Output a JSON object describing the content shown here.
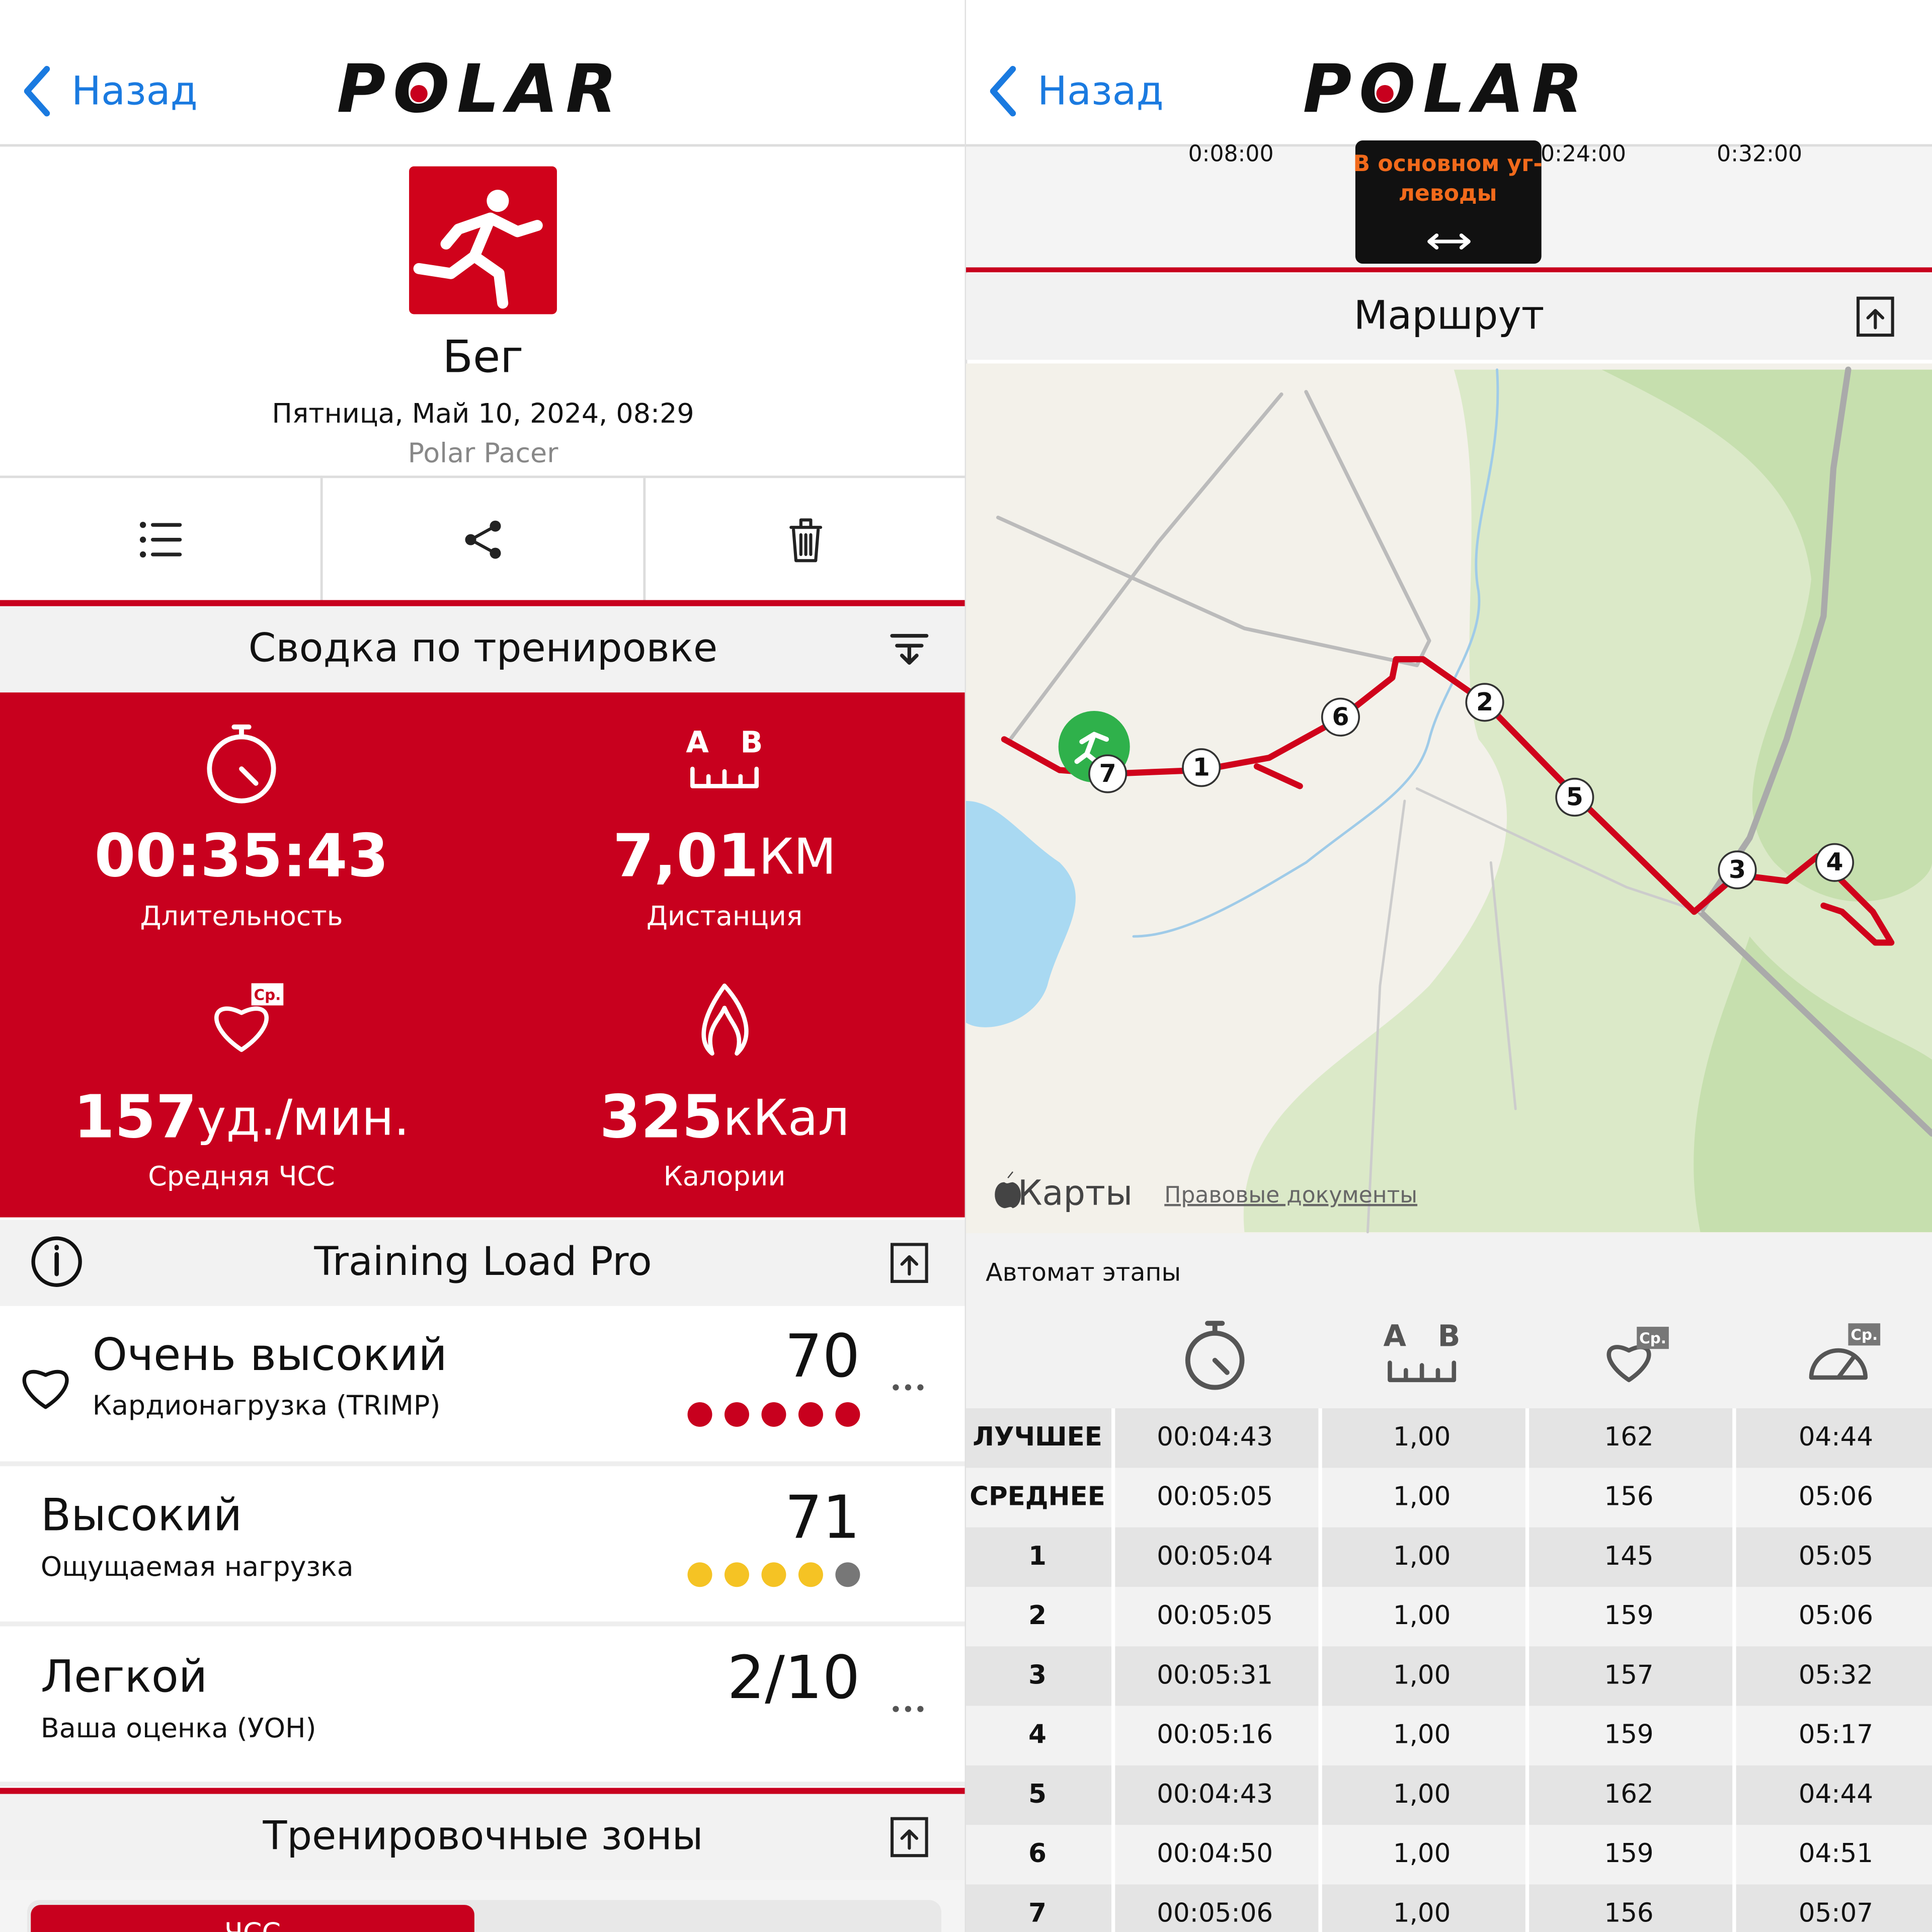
{
  "left": {
    "nav": {
      "back": "Назад",
      "brand": "POLAR"
    },
    "activity": {
      "sport": "Бег",
      "date": "Пятница, Май 10, 2024, 08:29",
      "device": "Polar Pacer"
    },
    "summary": {
      "title": "Сводка по тренировке",
      "icon_letters": [
        "A",
        "B"
      ],
      "badge": "Ср.",
      "stats": [
        {
          "value": "00:35:43",
          "label": "Длительность"
        },
        {
          "value": "7,01",
          "unit": "КМ",
          "label": "Дистанция"
        },
        {
          "value": "157",
          "unit": "уд./мин.",
          "label": "Средняя ЧСС"
        },
        {
          "value": "325",
          "unit": "кКал",
          "label": "Калории"
        }
      ]
    },
    "training_load": {
      "title": "Training Load Pro",
      "items": [
        {
          "level": "Очень высокий",
          "desc": "Кардионагрузка (TRIMP)",
          "score": "70"
        },
        {
          "level": "Высокий",
          "desc": "Ощущаемая нагрузка",
          "score": "71"
        },
        {
          "level": "Легкой",
          "desc": "Ваша оценка (УОН)",
          "score": "2/10"
        }
      ]
    },
    "zones": {
      "title": "Тренировочные зоны",
      "tab": "ЧСС"
    }
  },
  "right": {
    "nav": {
      "back": "Назад",
      "brand": "POLAR"
    },
    "timeline": {
      "ticks": [
        "0:08:00",
        "0:24:00",
        "0:32:00"
      ],
      "tooltip": [
        "В основном уг-",
        "леводы"
      ]
    },
    "route": {
      "title": "Маршрут",
      "markers": [
        "1",
        "2",
        "3",
        "4",
        "5",
        "6",
        "7"
      ],
      "attribution": "Карты",
      "legal": "Правовые документы"
    },
    "laps": {
      "title": "Автомат этапы",
      "icon_letters": [
        "A",
        "B"
      ],
      "badge": "Ср.",
      "rows": [
        [
          "ЛУЧШЕЕ",
          "00:04:43",
          "1,00",
          "162",
          "04:44"
        ],
        [
          "СРЕДНЕЕ",
          "00:05:05",
          "1,00",
          "156",
          "05:06"
        ],
        [
          "1",
          "00:05:04",
          "1,00",
          "145",
          "05:05"
        ],
        [
          "2",
          "00:05:05",
          "1,00",
          "159",
          "05:06"
        ],
        [
          "3",
          "00:05:31",
          "1,00",
          "157",
          "05:32"
        ],
        [
          "4",
          "00:05:16",
          "1,00",
          "159",
          "05:17"
        ],
        [
          "5",
          "00:04:43",
          "1,00",
          "162",
          "04:44"
        ],
        [
          "6",
          "00:04:50",
          "1,00",
          "159",
          "04:51"
        ],
        [
          "7",
          "00:05:06",
          "1,00",
          "156",
          "05:07"
        ]
      ]
    }
  }
}
